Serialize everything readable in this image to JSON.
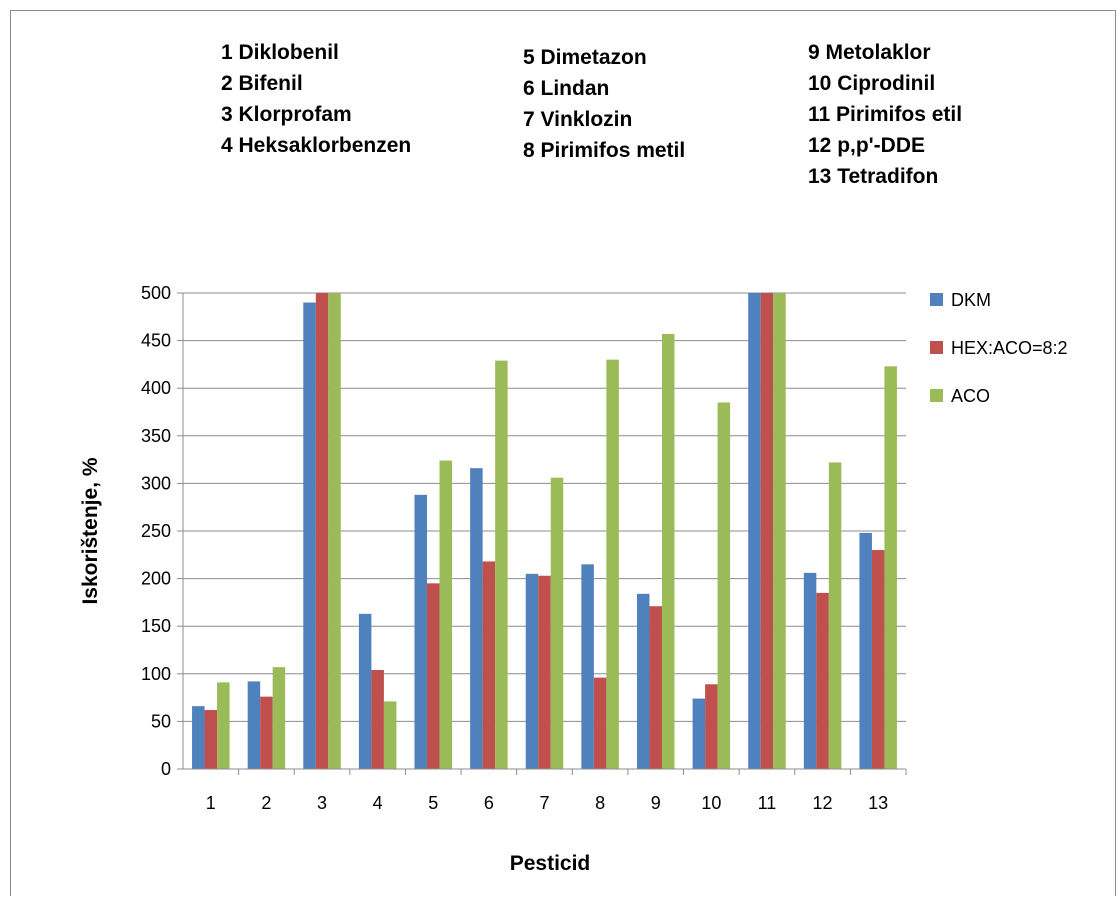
{
  "key": {
    "columns": [
      [
        "1  Diklobenil",
        "2  Bifenil",
        "3 Klorprofam",
        "4 Heksaklorbenzen"
      ],
      [
        "5  Dimetazon",
        "6  Lindan",
        "7  Vinklozin",
        "8  Pirimifos metil"
      ],
      [
        "9  Metolaklor",
        "10  Ciprodinil",
        "11  Pirimifos etil",
        "12  p,p'-DDE",
        "13  Tetradifon"
      ]
    ]
  },
  "chart_data": {
    "type": "bar",
    "title": "",
    "xlabel": "Pesticid",
    "ylabel": "Iskorištenje, %",
    "ylim": [
      0,
      500
    ],
    "yticks": [
      0,
      50,
      100,
      150,
      200,
      250,
      300,
      350,
      400,
      450,
      500
    ],
    "grid": true,
    "legend_position": "right",
    "categories": [
      "1",
      "2",
      "3",
      "4",
      "5",
      "6",
      "7",
      "8",
      "9",
      "10",
      "11",
      "12",
      "13"
    ],
    "series": [
      {
        "name": "DKM",
        "color": "#4f81bd",
        "values": [
          66,
          92,
          490,
          163,
          288,
          316,
          205,
          215,
          184,
          74,
          500,
          206,
          248
        ]
      },
      {
        "name": "HEX:ACO=8:2",
        "color": "#c0504d",
        "values": [
          62,
          76,
          500,
          104,
          195,
          218,
          203,
          96,
          171,
          89,
          500,
          185,
          230
        ]
      },
      {
        "name": "ACO",
        "color": "#9bbb59",
        "values": [
          91,
          107,
          500,
          71,
          324,
          429,
          306,
          430,
          457,
          385,
          500,
          322,
          423
        ]
      }
    ]
  }
}
